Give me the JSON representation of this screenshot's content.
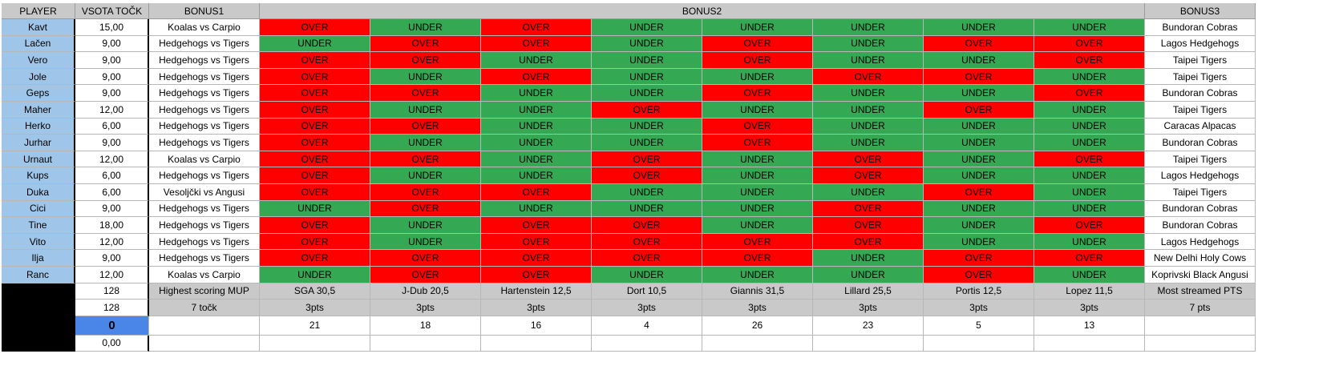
{
  "headers": {
    "player": "PLAYER",
    "sum": "VSOTA TOČK",
    "bonus1": "BONUS1",
    "bonus2": "BONUS2",
    "bonus3": "BONUS3"
  },
  "players": [
    {
      "name": "Kavt",
      "points": "15,00",
      "bonus1": "Koalas vs Carpio",
      "picks": [
        "OVER",
        "UNDER",
        "OVER",
        "UNDER",
        "UNDER",
        "UNDER",
        "UNDER",
        "UNDER"
      ],
      "bonus3": "Bundoran Cobras"
    },
    {
      "name": "Lačen",
      "points": "9,00",
      "bonus1": "Hedgehogs vs Tigers",
      "picks": [
        "UNDER",
        "OVER",
        "OVER",
        "UNDER",
        "OVER",
        "UNDER",
        "OVER",
        "OVER"
      ],
      "bonus3": "Lagos Hedgehogs"
    },
    {
      "name": "Vero",
      "points": "9,00",
      "bonus1": "Hedgehogs vs Tigers",
      "picks": [
        "OVER",
        "OVER",
        "UNDER",
        "UNDER",
        "OVER",
        "UNDER",
        "UNDER",
        "OVER"
      ],
      "bonus3": "Taipei Tigers"
    },
    {
      "name": "Jole",
      "points": "9,00",
      "bonus1": "Hedgehogs vs Tigers",
      "picks": [
        "OVER",
        "UNDER",
        "OVER",
        "UNDER",
        "UNDER",
        "OVER",
        "OVER",
        "UNDER"
      ],
      "bonus3": "Taipei Tigers"
    },
    {
      "name": "Geps",
      "points": "9,00",
      "bonus1": "Hedgehogs vs Tigers",
      "picks": [
        "OVER",
        "OVER",
        "UNDER",
        "UNDER",
        "OVER",
        "UNDER",
        "UNDER",
        "OVER"
      ],
      "bonus3": "Bundoran Cobras"
    },
    {
      "name": "Maher",
      "points": "12,00",
      "bonus1": "Hedgehogs vs Tigers",
      "picks": [
        "OVER",
        "UNDER",
        "UNDER",
        "OVER",
        "UNDER",
        "UNDER",
        "OVER",
        "UNDER"
      ],
      "bonus3": "Taipei Tigers"
    },
    {
      "name": "Herko",
      "points": "6,00",
      "bonus1": "Hedgehogs vs Tigers",
      "picks": [
        "OVER",
        "OVER",
        "UNDER",
        "UNDER",
        "OVER",
        "UNDER",
        "UNDER",
        "UNDER"
      ],
      "bonus3": "Caracas Alpacas"
    },
    {
      "name": "Jurhar",
      "points": "9,00",
      "bonus1": "Hedgehogs vs Tigers",
      "picks": [
        "OVER",
        "UNDER",
        "UNDER",
        "UNDER",
        "OVER",
        "UNDER",
        "UNDER",
        "UNDER"
      ],
      "bonus3": "Bundoran Cobras"
    },
    {
      "name": "Urnaut",
      "points": "12,00",
      "bonus1": "Koalas vs Carpio",
      "picks": [
        "OVER",
        "OVER",
        "UNDER",
        "OVER",
        "UNDER",
        "OVER",
        "UNDER",
        "OVER"
      ],
      "bonus3": "Taipei Tigers"
    },
    {
      "name": "Kups",
      "points": "6,00",
      "bonus1": "Hedgehogs vs Tigers",
      "picks": [
        "OVER",
        "UNDER",
        "UNDER",
        "OVER",
        "UNDER",
        "OVER",
        "UNDER",
        "UNDER"
      ],
      "bonus3": "Lagos Hedgehogs"
    },
    {
      "name": "Duka",
      "points": "6,00",
      "bonus1": "Vesoljčki vs Angusi",
      "picks": [
        "OVER",
        "OVER",
        "OVER",
        "UNDER",
        "UNDER",
        "UNDER",
        "OVER",
        "UNDER"
      ],
      "bonus3": "Taipei Tigers"
    },
    {
      "name": "Cici",
      "points": "9,00",
      "bonus1": "Hedgehogs vs Tigers",
      "picks": [
        "UNDER",
        "OVER",
        "UNDER",
        "UNDER",
        "UNDER",
        "OVER",
        "UNDER",
        "UNDER"
      ],
      "bonus3": "Bundoran Cobras"
    },
    {
      "name": "Tine",
      "points": "18,00",
      "bonus1": "Hedgehogs vs Tigers",
      "picks": [
        "OVER",
        "UNDER",
        "OVER",
        "OVER",
        "UNDER",
        "OVER",
        "UNDER",
        "OVER"
      ],
      "bonus3": "Bundoran Cobras"
    },
    {
      "name": "Vito",
      "points": "12,00",
      "bonus1": "Hedgehogs vs Tigers",
      "picks": [
        "OVER",
        "UNDER",
        "OVER",
        "OVER",
        "OVER",
        "OVER",
        "UNDER",
        "UNDER"
      ],
      "bonus3": "Lagos Hedgehogs"
    },
    {
      "name": "Ilja",
      "points": "9,00",
      "bonus1": "Hedgehogs vs Tigers",
      "picks": [
        "OVER",
        "OVER",
        "OVER",
        "OVER",
        "OVER",
        "UNDER",
        "OVER",
        "OVER"
      ],
      "bonus3": "New Delhi Holy Cows"
    },
    {
      "name": "Ranc",
      "points": "12,00",
      "bonus1": "Koalas vs Carpio",
      "picks": [
        "UNDER",
        "OVER",
        "OVER",
        "UNDER",
        "UNDER",
        "UNDER",
        "OVER",
        "UNDER"
      ],
      "bonus3": "Koprivski Black Angusi"
    }
  ],
  "pick_colors": {
    "OVER": "#ff0000",
    "UNDER": "#34a853"
  },
  "footer": {
    "sum_rows": [
      "128",
      "128",
      "0",
      "0,00"
    ],
    "categories": {
      "bonus1": "Highest scoring MUP",
      "bonus2": [
        "SGA 30,5",
        "J-Dub 20,5",
        "Hartenstein 12,5",
        "Dort 10,5",
        "Giannis 31,5",
        "Lillard 25,5",
        "Portis 12,5",
        "Lopez 11,5"
      ],
      "bonus3": "Most streamed PTS"
    },
    "points": {
      "bonus1": "7 točk",
      "bonus2": [
        "3pts",
        "3pts",
        "3pts",
        "3pts",
        "3pts",
        "3pts",
        "3pts",
        "3pts"
      ],
      "bonus3": "7 pts"
    },
    "results": [
      "21",
      "18",
      "16",
      "4",
      "26",
      "23",
      "5",
      "13"
    ]
  }
}
